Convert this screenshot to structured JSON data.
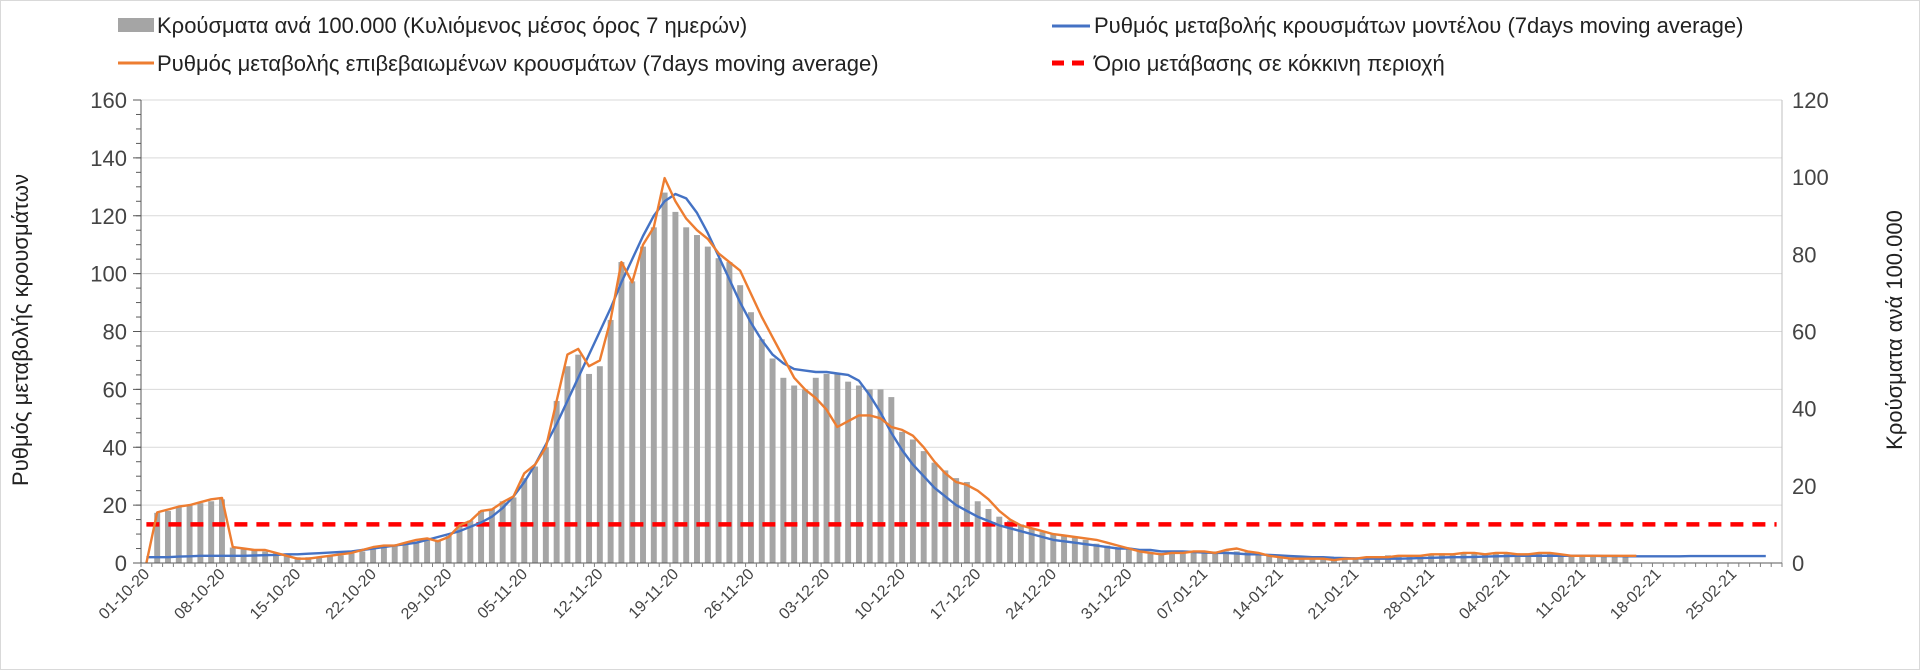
{
  "chart_data": {
    "type": "bar+line",
    "legend": {
      "bars": "Κρούσματα ανά 100.000 (Κυλιόμενος μέσος όρος 7 ημερών)",
      "model": "Ρυθμός μεταβολής κρουσμάτων μοντέλου (7days moving average)",
      "confirmed": "Ρυθμός μεταβολής επιβεβαιωμένων κρουσμάτων (7days moving average)",
      "threshold": "Όριο μετάβασης σε κόκκινη περιοχή"
    },
    "legend_position": "top",
    "ylabel_left": "Ρυθμός μεταβολής κρουσμάτων",
    "ylabel_right": "Κρούσματα ανά 100.000",
    "ylim_left": [
      0,
      160
    ],
    "ylim_right": [
      0,
      120
    ],
    "yticks_left": [
      "0",
      "20",
      "40",
      "60",
      "80",
      "100",
      "120",
      "140",
      "160"
    ],
    "yticks_right": [
      "0",
      "20",
      "40",
      "60",
      "80",
      "100",
      "120"
    ],
    "x_start": "01-10-20",
    "x_days_total": 152,
    "xticks": [
      "01-10-20",
      "08-10-20",
      "15-10-20",
      "22-10-20",
      "29-10-20",
      "05-11-20",
      "12-11-20",
      "19-11-20",
      "26-11-20",
      "03-12-20",
      "10-12-20",
      "17-12-20",
      "24-12-20",
      "31-12-20",
      "07-01-21",
      "14-01-21",
      "21-01-21",
      "28-01-21",
      "04-02-21",
      "11-02-21",
      "18-02-21",
      "25-02-21"
    ],
    "xtick_step_days": 7,
    "grid": true,
    "threshold_right_axis": 10,
    "colors": {
      "bars": "#a5a5a5",
      "model": "#4472c4",
      "confirmed": "#ed7d31",
      "threshold": "#ff0000"
    },
    "series": [
      {
        "name": "bars_cases_per_100k",
        "axis": "right",
        "values": [
          0,
          13,
          13.5,
          14.5,
          15,
          15.5,
          16,
          16.5,
          4,
          3.5,
          3.5,
          3,
          2.5,
          2,
          1.5,
          1.5,
          1.5,
          2,
          2,
          2.5,
          3,
          3.5,
          4,
          4.5,
          5,
          5.5,
          6,
          6,
          7,
          9.5,
          11,
          13.5,
          14,
          16,
          17,
          22,
          25,
          30,
          42,
          51,
          54,
          49,
          51,
          63,
          78,
          73,
          82,
          87,
          96,
          91,
          87,
          85,
          82,
          79,
          78,
          72,
          65,
          58,
          53,
          48,
          46,
          45,
          48,
          49,
          49,
          47,
          46,
          45,
          45,
          43,
          34,
          32,
          29,
          26,
          24,
          22,
          21,
          16,
          14,
          12,
          11,
          10,
          9,
          8,
          7.5,
          7,
          6.5,
          6,
          5,
          4.5,
          4,
          3.5,
          3,
          2.5,
          2.5,
          3,
          3,
          3,
          3,
          3,
          3,
          3,
          3,
          2.5,
          2,
          1.5,
          1.5,
          1,
          1,
          1,
          1,
          1.5,
          1.5,
          1.5,
          1.5,
          2,
          2,
          2,
          2,
          2,
          2.5,
          2.5,
          2.5,
          2.5,
          2.5,
          2.5,
          2.5,
          2.5,
          2.5,
          2.5,
          2.5,
          2,
          2,
          2,
          2,
          2,
          2,
          2
        ]
      },
      {
        "name": "model",
        "axis": "left",
        "values": [
          2,
          2,
          2,
          2.2,
          2.3,
          2.5,
          2.5,
          2.5,
          2.5,
          2.5,
          2.6,
          2.7,
          2.8,
          3,
          3,
          3.2,
          3.4,
          3.6,
          3.8,
          4,
          4.5,
          5,
          5.5,
          6,
          6.5,
          7,
          8,
          9,
          10,
          11,
          12.5,
          14,
          16,
          19,
          23,
          28,
          34,
          41,
          48,
          56,
          64,
          72,
          80,
          88,
          97,
          105,
          113,
          120,
          125,
          127.5,
          126,
          121,
          114,
          106,
          98,
          90,
          83,
          77,
          72,
          69,
          67,
          66.5,
          66,
          66,
          65.5,
          65,
          63,
          58,
          52,
          45,
          39,
          34,
          30,
          26,
          23,
          20,
          18,
          16,
          14.5,
          13,
          12,
          11,
          10,
          9,
          8,
          7.5,
          7,
          6.5,
          6,
          5.5,
          5,
          5,
          4.5,
          4.5,
          4,
          4,
          4,
          3.8,
          3.6,
          3.5,
          3.5,
          3.3,
          3,
          3,
          2.8,
          2.6,
          2.4,
          2.2,
          2,
          2,
          1.8,
          1.7,
          1.6,
          1.5,
          1.5,
          1.5,
          1.5,
          1.6,
          1.7,
          1.8,
          1.9,
          2,
          2,
          2.1,
          2.2,
          2.3,
          2.4,
          2.5,
          2.5,
          2.5,
          2.5,
          2.5,
          2.5,
          2.5,
          2.5,
          2.4,
          2.4,
          2.3,
          2.3,
          2.3,
          2.3,
          2.3,
          2.3,
          2.4,
          2.4,
          2.4,
          2.4,
          2.4,
          2.4,
          2.4,
          2.4
        ]
      },
      {
        "name": "confirmed",
        "axis": "left",
        "values": [
          0,
          17.5,
          18.5,
          19.5,
          20,
          21,
          22,
          22.5,
          5.5,
          5,
          4.5,
          4.5,
          3.5,
          2.5,
          1.5,
          1.5,
          2,
          2.5,
          3,
          3.5,
          4.5,
          5.5,
          6,
          6,
          7,
          8,
          8.5,
          7.5,
          9,
          13,
          14.5,
          18,
          18.5,
          21,
          23,
          31,
          34,
          40,
          56,
          72,
          74,
          68,
          70,
          84,
          104,
          97,
          110,
          116,
          133,
          125,
          119,
          115,
          112,
          107,
          104,
          101,
          93,
          85,
          78,
          71,
          64,
          60,
          57,
          53,
          47,
          49,
          51,
          51,
          50,
          47,
          46,
          44,
          40,
          35,
          31,
          28,
          27,
          25,
          22,
          18,
          15,
          13,
          12,
          11,
          10,
          9.5,
          9,
          8.5,
          8,
          7,
          6,
          5,
          4,
          3.5,
          3,
          3.5,
          3.5,
          4,
          4,
          3.5,
          4.5,
          5,
          4,
          3.5,
          2.5,
          2,
          1.5,
          1.5,
          1.5,
          1.5,
          1,
          1.5,
          1.5,
          2,
          2,
          2,
          2.5,
          2.5,
          2.5,
          3,
          3,
          3,
          3.5,
          3.5,
          3,
          3.5,
          3.5,
          3,
          3,
          3.5,
          3.5,
          3,
          2.5,
          2.5,
          2.5,
          2.5,
          2.5,
          2.5,
          2.5
        ]
      }
    ]
  }
}
